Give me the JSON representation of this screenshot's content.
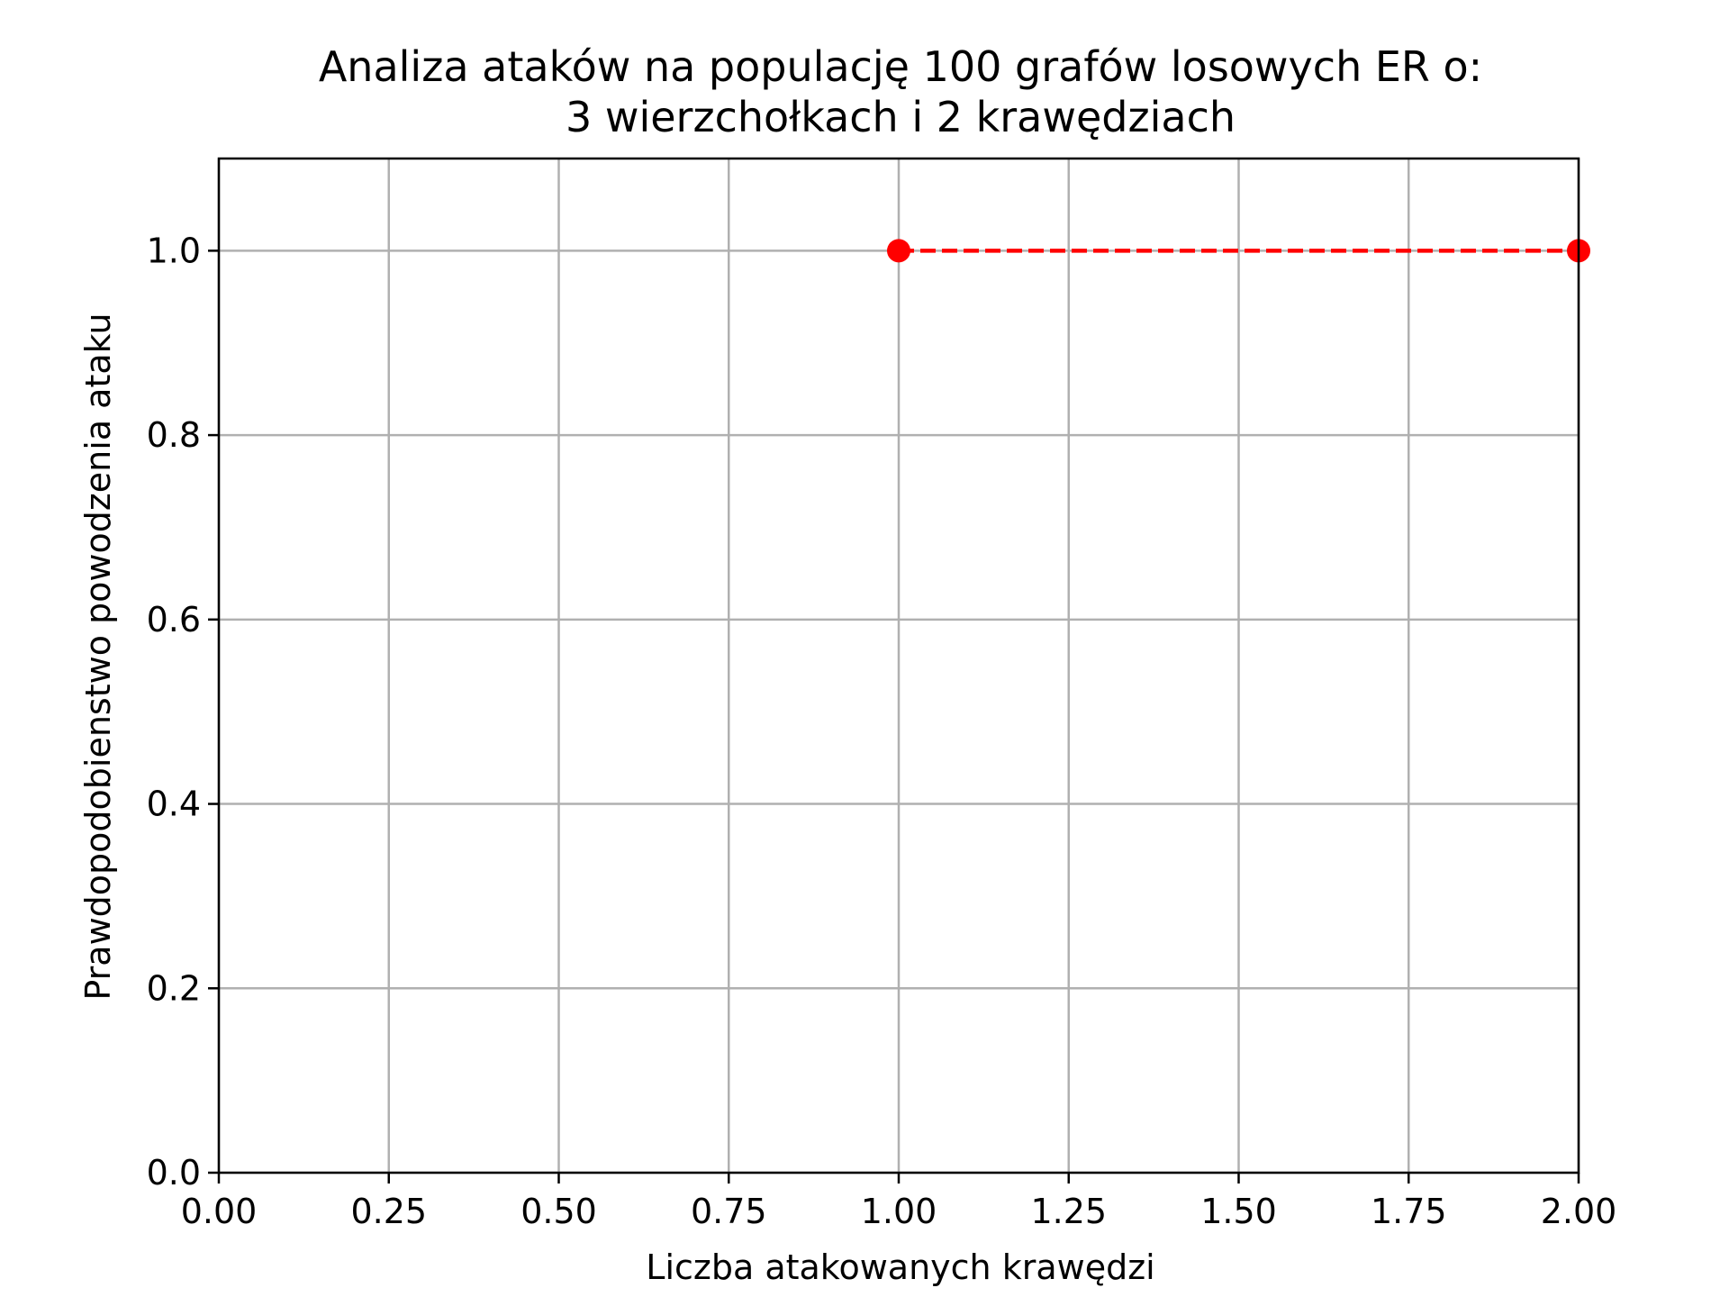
{
  "chart_data": {
    "type": "line",
    "title": "Analiza ataków na populację 100 grafów losowych ER o:",
    "subtitle": "3 wierzchołkach i 2 krawędziach",
    "xlabel": "Liczba atakowanych krawędzi",
    "ylabel": "Prawdopodobienstwo powodzenia ataku",
    "xlim": [
      0,
      2
    ],
    "ylim": [
      0,
      1.1
    ],
    "x_ticks": [
      "0.00",
      "0.25",
      "0.50",
      "0.75",
      "1.00",
      "1.25",
      "1.50",
      "1.75",
      "2.00"
    ],
    "y_ticks": [
      "0.0",
      "0.2",
      "0.4",
      "0.6",
      "0.8",
      "1.0"
    ],
    "grid": true,
    "series": [
      {
        "color": "#ff0000",
        "line_style": "dashed",
        "marker": "circle",
        "points": [
          {
            "x": 1,
            "y": 1.0
          },
          {
            "x": 2,
            "y": 1.0
          }
        ]
      }
    ]
  }
}
